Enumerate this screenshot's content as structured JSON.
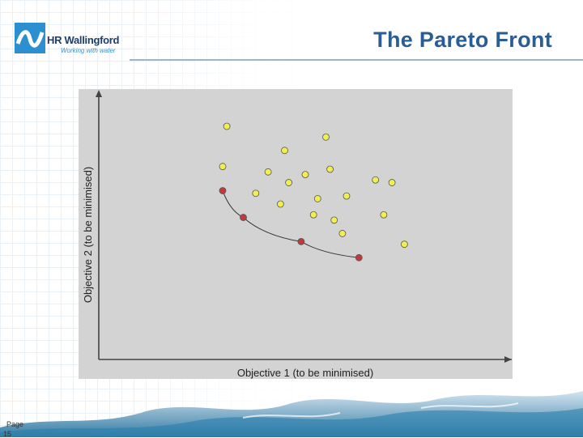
{
  "logo": {
    "name": "HR Wallingford",
    "tagline": "Working with water"
  },
  "slide": {
    "title": "The Pareto Front",
    "page_label": "Page",
    "page_number": "15"
  },
  "colors": {
    "title": "#2b5d95",
    "plot_bg": "#d3d3d3",
    "dominated_point": "#f0ee50",
    "pareto_point": "#c0393b",
    "axis": "#444444"
  },
  "chart_data": {
    "type": "scatter",
    "title": "",
    "xlabel": "Objective 1 (to be minimised)",
    "ylabel": "Objective 2 (to be minimised)",
    "xlim": [
      0,
      100
    ],
    "ylim": [
      0,
      100
    ],
    "grid": false,
    "series": [
      {
        "role": "dominated",
        "color": "#f0ee50",
        "points": [
          {
            "x": 31,
            "y": 87
          },
          {
            "x": 45,
            "y": 78
          },
          {
            "x": 55,
            "y": 83
          },
          {
            "x": 30,
            "y": 72
          },
          {
            "x": 41,
            "y": 70
          },
          {
            "x": 50,
            "y": 69
          },
          {
            "x": 56,
            "y": 71
          },
          {
            "x": 46,
            "y": 66
          },
          {
            "x": 38,
            "y": 62
          },
          {
            "x": 44,
            "y": 58
          },
          {
            "x": 53,
            "y": 60
          },
          {
            "x": 60,
            "y": 61
          },
          {
            "x": 67,
            "y": 67
          },
          {
            "x": 71,
            "y": 66
          },
          {
            "x": 52,
            "y": 54
          },
          {
            "x": 57,
            "y": 52
          },
          {
            "x": 59,
            "y": 47
          },
          {
            "x": 69,
            "y": 54
          },
          {
            "x": 74,
            "y": 43
          }
        ]
      },
      {
        "role": "pareto",
        "color": "#c0393b",
        "points": [
          {
            "x": 30,
            "y": 63
          },
          {
            "x": 35,
            "y": 53
          },
          {
            "x": 49,
            "y": 44
          },
          {
            "x": 63,
            "y": 38
          }
        ]
      }
    ],
    "pareto_curve": true
  }
}
